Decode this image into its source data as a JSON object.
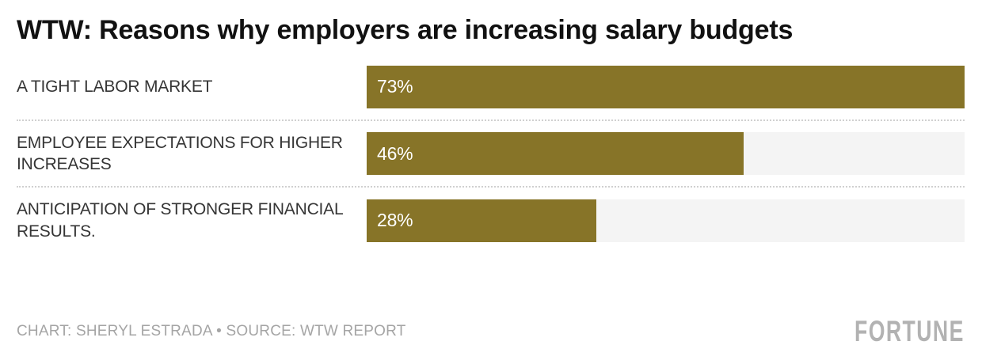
{
  "chart_data": {
    "type": "bar",
    "orientation": "horizontal",
    "title": "WTW: Reasons why employers are increasing salary budgets",
    "categories": [
      "A TIGHT LABOR MARKET",
      "EMPLOYEE EXPECTATIONS FOR HIGHER INCREASES",
      "ANTICIPATION OF STRONGER FINANCIAL RESULTS."
    ],
    "values": [
      73,
      46,
      28
    ],
    "value_labels": [
      "73%",
      "46%",
      "28%"
    ],
    "xlim": [
      0,
      73
    ],
    "grid": "off",
    "legend": "none",
    "bar_color": "#877428",
    "track_color": "#f4f4f4"
  },
  "footer": {
    "credit": "CHART: SHERYL ESTRADA • SOURCE: WTW REPORT",
    "logo": "FORTUNE"
  }
}
